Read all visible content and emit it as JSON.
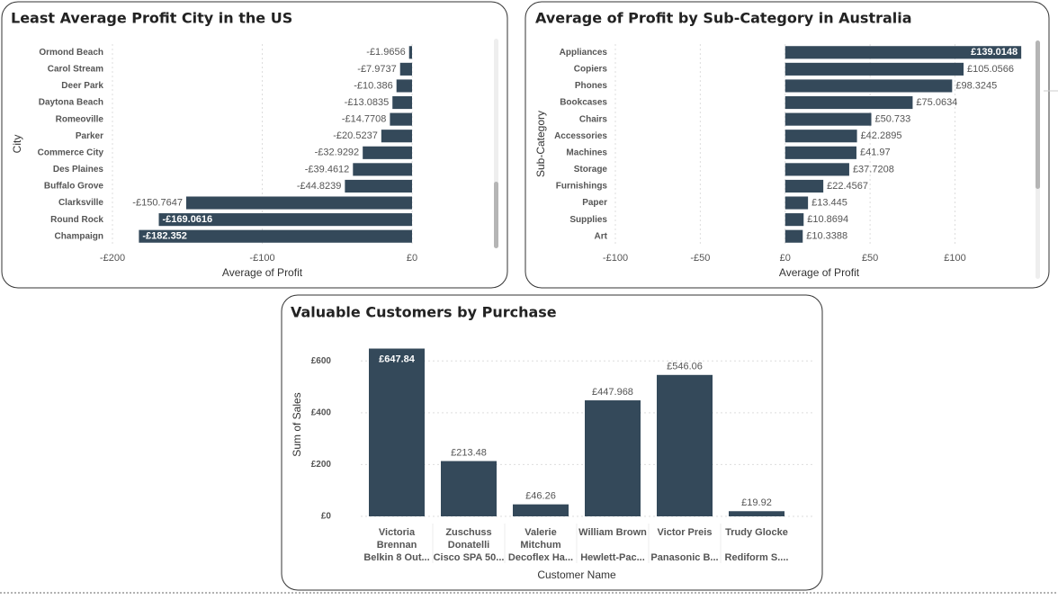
{
  "chart_data": [
    {
      "type": "bar",
      "orientation": "horizontal",
      "title": "Least Average Profit City in the US",
      "categories": [
        "Ormond Beach",
        "Carol Stream",
        "Deer Park",
        "Daytona Beach",
        "Romeoville",
        "Parker",
        "Commerce City",
        "Des Plaines",
        "Buffalo Grove",
        "Clarksville",
        "Round Rock",
        "Champaign"
      ],
      "values": [
        -1.9656,
        -7.9737,
        -10.386,
        -13.0835,
        -14.7708,
        -20.5237,
        -32.9292,
        -39.4612,
        -44.8239,
        -150.7647,
        -169.0616,
        -182.352
      ],
      "value_labels": [
        "-£1.9656",
        "-£7.9737",
        "-£10.386",
        "-£13.0835",
        "-£14.7708",
        "-£20.5237",
        "-£32.9292",
        "-£39.4612",
        "-£44.8239",
        "-£150.7647",
        "-£169.0616",
        "-£182.352"
      ],
      "x_label": "Average of Profit",
      "y_label": "City",
      "color": "#34495a",
      "xlim": [
        -200,
        0
      ],
      "xticks": [
        {
          "value": -200,
          "label": "-£200"
        },
        {
          "value": -100,
          "label": "-£100"
        },
        {
          "value": 0,
          "label": "£0"
        }
      ],
      "grid": true
    },
    {
      "type": "bar",
      "orientation": "horizontal",
      "title": "Average of Profit by Sub-Category in Australia",
      "categories": [
        "Appliances",
        "Copiers",
        "Phones",
        "Bookcases",
        "Chairs",
        "Accessories",
        "Machines",
        "Storage",
        "Furnishings",
        "Paper",
        "Supplies",
        "Art"
      ],
      "values": [
        139.0148,
        105.0566,
        98.3245,
        75.0634,
        50.733,
        42.2895,
        41.97,
        37.7208,
        22.4567,
        13.445,
        10.8694,
        10.3388
      ],
      "value_labels": [
        "£139.0148",
        "£105.0566",
        "£98.3245",
        "£75.0634",
        "£50.733",
        "£42.2895",
        "£41.97",
        "£37.7208",
        "£22.4567",
        "£13.445",
        "£10.8694",
        "£10.3388"
      ],
      "x_label": "Average of Profit",
      "y_label": "Sub-Category",
      "color": "#34495a",
      "xlim": [
        -100,
        140
      ],
      "xticks": [
        {
          "value": -100,
          "label": "-£100"
        },
        {
          "value": -50,
          "label": "-£50"
        },
        {
          "value": 0,
          "label": "£0"
        },
        {
          "value": 50,
          "label": "£50"
        },
        {
          "value": 100,
          "label": "£100"
        }
      ],
      "grid": true
    },
    {
      "type": "bar",
      "orientation": "vertical",
      "title": "Valuable Customers by Purchase",
      "categories": [
        "Victoria Brennan",
        "Zuschuss Donatelli",
        "Valerie Mitchum",
        "William Brown",
        "Victor Preis",
        "Trudy Glocke"
      ],
      "subcategories": [
        "Belkin 8 Out...",
        "Cisco SPA 50...",
        "Decoflex Ha...",
        "Hewlett-Pac...",
        "Panasonic B...",
        "Rediform S...."
      ],
      "values": [
        647.84,
        213.48,
        46.26,
        447.968,
        546.06,
        19.92
      ],
      "value_labels": [
        "£647.84",
        "£213.48",
        "£46.26",
        "£447.968",
        "£546.06",
        "£19.92"
      ],
      "x_label": "Customer Name",
      "y_label": "Sum of Sales",
      "color": "#34495a",
      "ylim": [
        0,
        660
      ],
      "yticks": [
        {
          "value": 0,
          "label": "£0"
        },
        {
          "value": 200,
          "label": "£200"
        },
        {
          "value": 400,
          "label": "£400"
        },
        {
          "value": 600,
          "label": "£600"
        }
      ],
      "grid": true
    }
  ]
}
